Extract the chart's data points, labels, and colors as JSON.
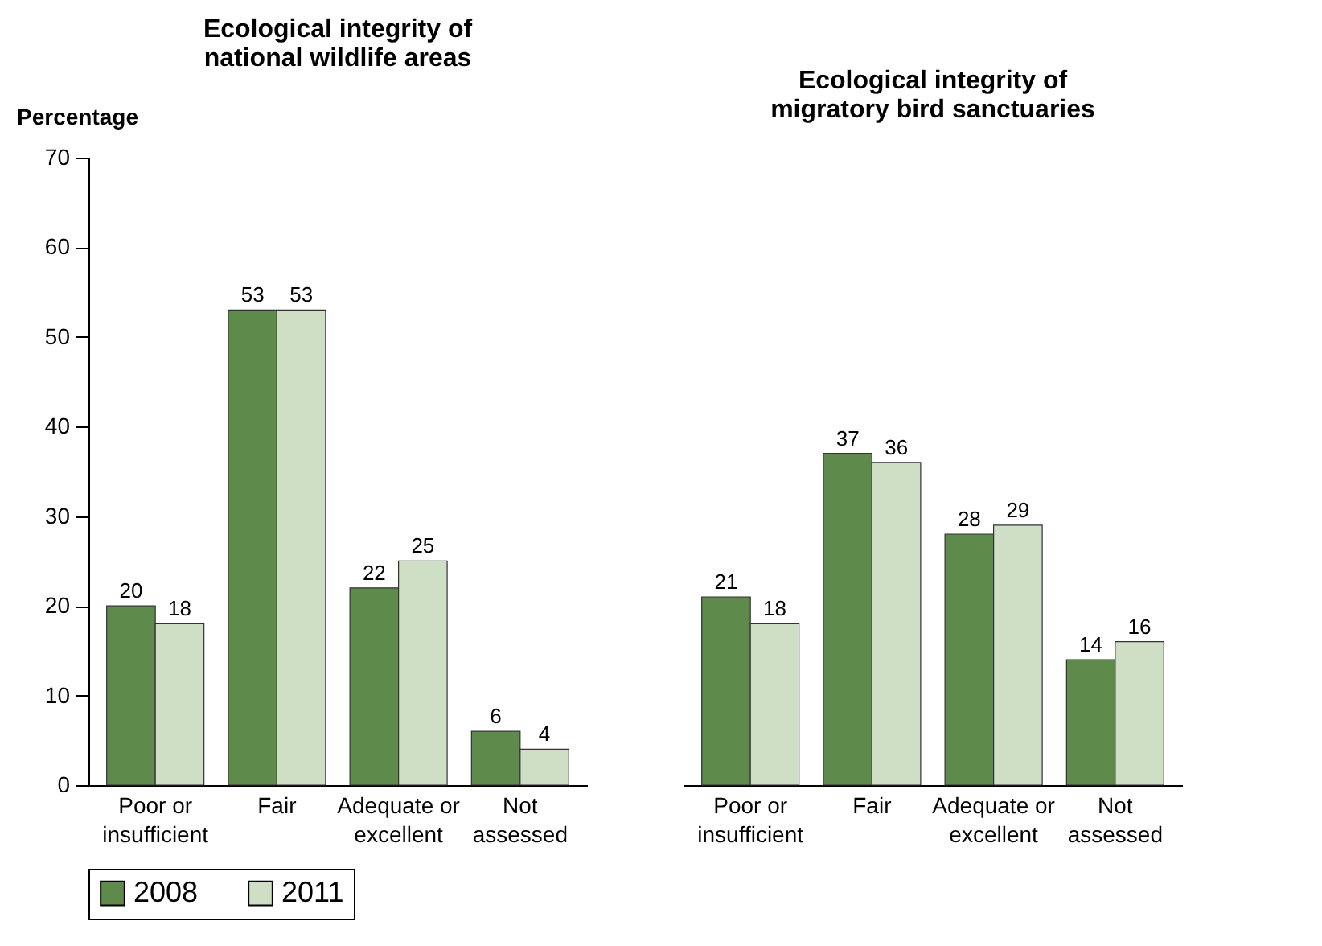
{
  "chart_data": [
    {
      "type": "bar",
      "title": "Ecological integrity of national wildlife areas",
      "ylabel": "Percentage",
      "categories": [
        "Poor or insufficient",
        "Fair",
        "Adequate or excellent",
        "Not assessed"
      ],
      "series": [
        {
          "name": "2008",
          "color": "#5e8a4c",
          "values": [
            20,
            53,
            22,
            6
          ]
        },
        {
          "name": "2011",
          "color": "#cfdfc5",
          "values": [
            18,
            53,
            25,
            4
          ]
        }
      ],
      "ylim": [
        0,
        70
      ],
      "yticks": [
        0,
        10,
        20,
        30,
        40,
        50,
        60,
        70
      ],
      "grid": false,
      "data_labels": true,
      "legend": "bottom"
    },
    {
      "type": "bar",
      "title": "Ecological integrity of migratory bird sanctuaries",
      "categories": [
        "Poor or insufficient",
        "Fair",
        "Adequate or excellent",
        "Not assessed"
      ],
      "series": [
        {
          "name": "2008",
          "color": "#5e8a4c",
          "values": [
            21,
            37,
            28,
            14
          ]
        },
        {
          "name": "2011",
          "color": "#cfdfc5",
          "values": [
            18,
            36,
            29,
            16
          ]
        }
      ],
      "ylim": [
        0,
        70
      ],
      "yticks": [
        0,
        10,
        20,
        30,
        40,
        50,
        60,
        70
      ],
      "grid": false,
      "data_labels": true,
      "legend": "bottom",
      "tick_labels": "x"
    }
  ]
}
